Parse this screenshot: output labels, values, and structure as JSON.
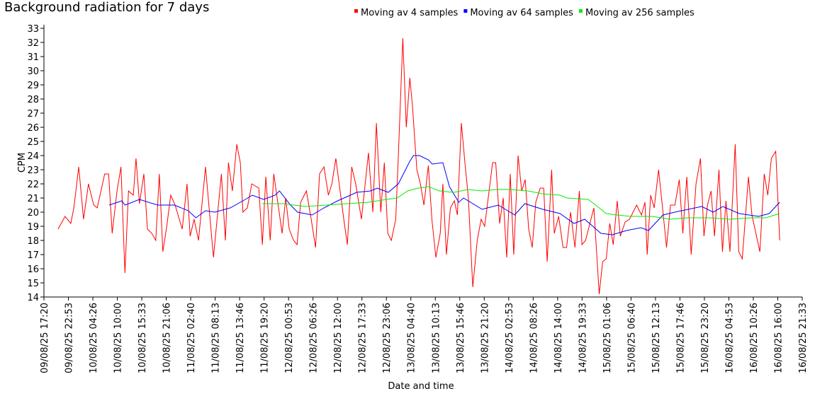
{
  "chart_data": {
    "type": "line",
    "title": "Background radiation for 7 days",
    "xlabel": "Date and time",
    "ylabel": "CPM",
    "xlim": [
      0,
      172.22
    ],
    "ylim": [
      14,
      33
    ],
    "yticks": [
      14,
      15,
      16,
      17,
      18,
      19,
      20,
      21,
      22,
      23,
      24,
      25,
      26,
      27,
      28,
      29,
      30,
      31,
      32,
      33
    ],
    "xticks": [
      {
        "value": 0,
        "label": "09/08/25 17:20"
      },
      {
        "value": 5.56,
        "label": "09/08/25 22:53"
      },
      {
        "value": 11.11,
        "label": "10/08/25 04:26"
      },
      {
        "value": 16.67,
        "label": "10/08/25 10:00"
      },
      {
        "value": 22.22,
        "label": "10/08/25 15:33"
      },
      {
        "value": 27.78,
        "label": "10/08/25 21:06"
      },
      {
        "value": 33.33,
        "label": "11/08/25 02:40"
      },
      {
        "value": 38.89,
        "label": "11/08/25 08:13"
      },
      {
        "value": 44.44,
        "label": "11/08/25 13:46"
      },
      {
        "value": 50,
        "label": "11/08/25 19:20"
      },
      {
        "value": 55.56,
        "label": "12/08/25 00:53"
      },
      {
        "value": 61.11,
        "label": "12/08/25 06:26"
      },
      {
        "value": 66.67,
        "label": "12/08/25 12:00"
      },
      {
        "value": 72.22,
        "label": "12/08/25 17:33"
      },
      {
        "value": 77.78,
        "label": "12/08/25 23:06"
      },
      {
        "value": 83.33,
        "label": "13/08/25 04:40"
      },
      {
        "value": 88.89,
        "label": "13/08/25 10:13"
      },
      {
        "value": 94.44,
        "label": "13/08/25 15:46"
      },
      {
        "value": 100,
        "label": "13/08/25 21:20"
      },
      {
        "value": 105.56,
        "label": "14/08/25 02:53"
      },
      {
        "value": 111.11,
        "label": "14/08/25 08:26"
      },
      {
        "value": 116.67,
        "label": "14/08/25 14:00"
      },
      {
        "value": 122.22,
        "label": "14/08/25 19:33"
      },
      {
        "value": 127.78,
        "label": "15/08/25 01:06"
      },
      {
        "value": 133.33,
        "label": "15/08/25 06:40"
      },
      {
        "value": 138.89,
        "label": "15/08/25 12:13"
      },
      {
        "value": 144.44,
        "label": "15/08/25 17:46"
      },
      {
        "value": 150,
        "label": "15/08/25 23:20"
      },
      {
        "value": 155.56,
        "label": "16/08/25 04:53"
      },
      {
        "value": 161.11,
        "label": "16/08/25 10:26"
      },
      {
        "value": 166.67,
        "label": "16/08/25 16:00"
      },
      {
        "value": 172.22,
        "label": "16/08/25 21:33"
      }
    ],
    "series": [
      {
        "name": "Moving av 4 samples",
        "color": "#ff0000",
        "x": [
          3.2,
          4.8,
          6.1,
          6.8,
          7.9,
          9.0,
          10.1,
          11.3,
          12.1,
          13.8,
          14.7,
          15.5,
          16.6,
          17.5,
          18.4,
          19.2,
          20.3,
          20.9,
          21.7,
          22.7,
          23.5,
          24.5,
          25.4,
          26.2,
          27.0,
          27.9,
          28.8,
          29.8,
          31.4,
          32.5,
          33.2,
          34.1,
          35.1,
          36.7,
          38.5,
          40.3,
          41.2,
          41.9,
          42.8,
          43.8,
          44.6,
          45.2,
          46.2,
          47.2,
          48.8,
          49.6,
          50.4,
          51.4,
          52.2,
          54.1,
          54.9,
          55.7,
          56.7,
          57.5,
          58.3,
          59.6,
          60.7,
          61.7,
          62.6,
          63.6,
          64.6,
          65.4,
          66.3,
          68.1,
          68.9,
          69.9,
          70.8,
          72.1,
          73.7,
          74.7,
          75.5,
          76.5,
          77.3,
          78.1,
          78.9,
          79.9,
          80.5,
          81.5,
          82.3,
          83.1,
          83.7,
          84.7,
          85.5,
          86.3,
          87.3,
          88.1,
          89.0,
          90.0,
          90.6,
          91.4,
          92.3,
          93.2,
          93.9,
          94.8,
          95.6,
          96.4,
          97.4,
          98.4,
          99.3,
          100.1,
          100.9,
          101.9,
          102.6,
          103.5,
          104.3,
          105.1,
          105.9,
          106.7,
          107.7,
          108.5,
          109.3,
          110.1,
          110.9,
          111.7,
          112.7,
          113.5,
          114.3,
          115.3,
          115.9,
          116.9,
          117.9,
          118.7,
          119.6,
          120.6,
          121.6,
          122.2,
          123.0,
          124.9,
          126.1,
          126.9,
          127.7,
          128.5,
          129.3,
          130.2,
          130.9,
          132.0,
          133.0,
          133.8,
          134.6,
          135.7,
          136.5,
          137.0,
          137.8,
          138.6,
          139.6,
          140.6,
          141.4,
          142.3,
          143.3,
          144.3,
          145.1,
          146.0,
          147.0,
          148.1,
          149.1,
          149.9,
          150.7,
          151.5,
          152.3,
          153.3,
          154.1,
          154.9,
          155.8,
          157.0,
          157.8,
          158.6,
          160.0,
          160.8,
          162.6,
          163.6,
          164.4,
          165.2,
          166.2,
          167.1
        ],
        "values": [
          18.8,
          19.7,
          19.2,
          20.3,
          23.2,
          19.5,
          22,
          20.5,
          20.3,
          22.7,
          22.7,
          18.5,
          21.5,
          23.2,
          15.7,
          21.5,
          21.2,
          23.8,
          20.6,
          22.7,
          18.8,
          18.5,
          18,
          22.7,
          17.2,
          19,
          21.2,
          20.5,
          18.8,
          22,
          18.3,
          19.5,
          18,
          23.2,
          16.8,
          22.7,
          18,
          23.5,
          21.5,
          24.8,
          23.5,
          20,
          20.3,
          22,
          21.7,
          17.7,
          22.5,
          18,
          22.7,
          18.5,
          21,
          18.8,
          18,
          17.7,
          20.7,
          21.5,
          19.5,
          17.5,
          22.7,
          23.2,
          21.2,
          22,
          23.8,
          19.5,
          17.7,
          23.2,
          22,
          19.5,
          24.2,
          20,
          26.3,
          20,
          23.5,
          18.5,
          18,
          19.5,
          24,
          32.3,
          26,
          29.5,
          27.5,
          23,
          22,
          20.5,
          23.3,
          19.5,
          16.8,
          18.5,
          22,
          17,
          20.3,
          20.8,
          19.8,
          26.3,
          23.5,
          21,
          14.7,
          18,
          19.5,
          19,
          21,
          23.5,
          23.5,
          19.2,
          21,
          16.8,
          22.7,
          17,
          24,
          21.5,
          22.3,
          18.8,
          17.5,
          20.7,
          21.7,
          21.7,
          16.5,
          23,
          18.5,
          19.7,
          17.5,
          17.5,
          20,
          17.5,
          21.5,
          17.7,
          18,
          20.3,
          14.2,
          16.5,
          16.7,
          19.2,
          17.7,
          20.8,
          18.3,
          19.3,
          19.5,
          20,
          20.5,
          19.8,
          20.7,
          17,
          21.2,
          20.3,
          23,
          20,
          17.5,
          20.5,
          20.5,
          22.3,
          18.5,
          22.5,
          17,
          22,
          23.8,
          18.3,
          20.5,
          21.5,
          18.3,
          23,
          17.2,
          20.8,
          17.2,
          24.8,
          17.2,
          16.7,
          22.5,
          19.8,
          17.2,
          22.7,
          21.2,
          23.8,
          24.3,
          18
        ]
      },
      {
        "name": "Moving av 64 samples",
        "color": "#0000ff",
        "x": [
          14.8,
          17.7,
          18.4,
          21.7,
          25.8,
          29.6,
          32.8,
          34.5,
          36.7,
          38.8,
          42.3,
          45.2,
          47.3,
          49.9,
          52.5,
          53.5,
          56.0,
          57.6,
          60.9,
          63.6,
          66.7,
          69.6,
          71.0,
          74.2,
          75.7,
          78.2,
          80.5,
          83.1,
          83.9,
          85.3,
          87.3,
          88.2,
          90.6,
          92.1,
          94.2,
          95.3,
          99.5,
          103.2,
          106.9,
          109.2,
          113.3,
          117.2,
          120.4,
          122.8,
          126.5,
          129.1,
          132.3,
          135.6,
          137.3,
          140.6,
          143.3,
          149.4,
          152.0,
          154.2,
          157.9,
          162.3,
          164.7,
          167.1
        ],
        "values": [
          20.5,
          20.8,
          20.5,
          20.9,
          20.5,
          20.5,
          20.1,
          19.6,
          20.1,
          20.0,
          20.3,
          20.8,
          21.2,
          20.9,
          21.2,
          21.5,
          20.5,
          20.0,
          19.8,
          20.3,
          20.8,
          21.2,
          21.4,
          21.5,
          21.7,
          21.4,
          22.0,
          23.6,
          24.0,
          24.0,
          23.7,
          23.4,
          23.5,
          21.8,
          20.7,
          21.0,
          20.2,
          20.5,
          19.8,
          20.6,
          20.2,
          19.9,
          19.2,
          19.5,
          18.5,
          18.4,
          18.7,
          18.9,
          18.7,
          19.8,
          20.0,
          20.4,
          20.0,
          20.4,
          19.9,
          19.7,
          19.9,
          20.7
        ]
      },
      {
        "name": "Moving av 256 samples",
        "color": "#00ee00",
        "x": [
          49.6,
          54.4,
          59.3,
          64.1,
          68.9,
          73.7,
          77.8,
          80.2,
          82.6,
          85.0,
          87.4,
          89.8,
          93.1,
          96.3,
          99.5,
          102.7,
          105.9,
          109.9,
          113.2,
          117.2,
          118.8,
          123.6,
          125.3,
          127.7,
          130.1,
          133.3,
          138.1,
          142.2,
          146.2,
          151.0,
          155.8,
          160.7,
          163.9,
          167.1
        ],
        "values": [
          20.6,
          20.6,
          20.4,
          20.5,
          20.6,
          20.7,
          20.9,
          21.0,
          21.5,
          21.7,
          21.8,
          21.5,
          21.4,
          21.6,
          21.5,
          21.6,
          21.6,
          21.5,
          21.3,
          21.2,
          21.0,
          20.9,
          20.5,
          19.9,
          19.8,
          19.7,
          19.7,
          19.5,
          19.6,
          19.6,
          19.5,
          19.6,
          19.6,
          19.9
        ]
      }
    ]
  }
}
